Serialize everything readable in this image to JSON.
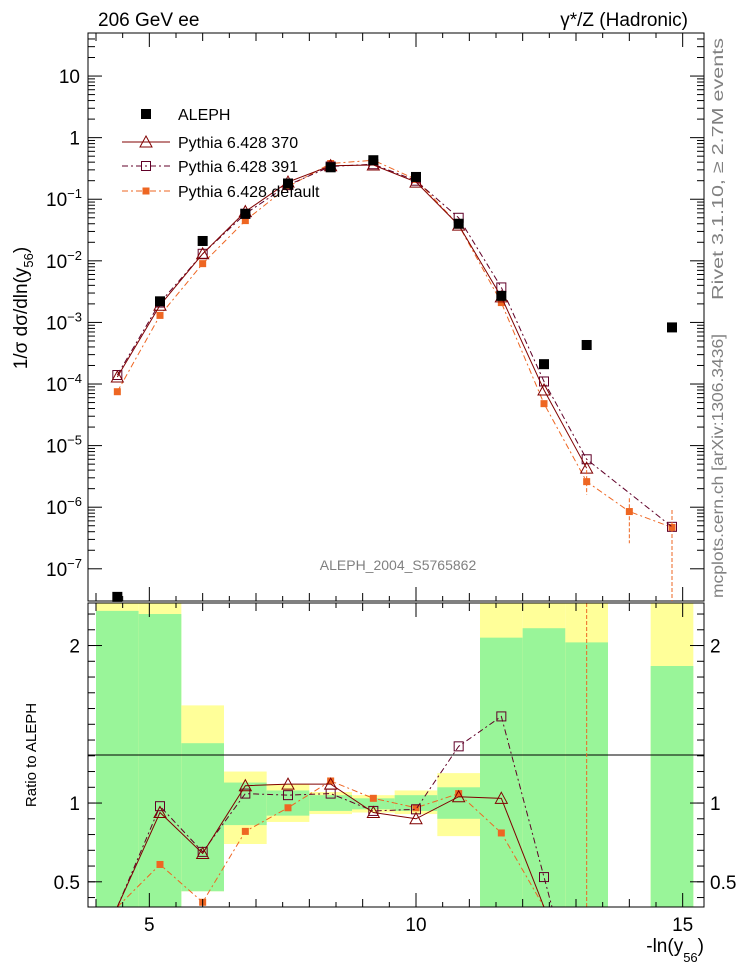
{
  "header": {
    "energy_label": "206 GeV ee",
    "process_label": "γ*/Z (Hadronic)",
    "rivet_label": "Rivet 3.1.10, ≥ 2.7M events",
    "mcplots_label": "mcplots.cern.ch [arXiv:1306.3436]",
    "analysis_label": "ALEPH_2004_S5765862"
  },
  "colors": {
    "data": "#000000",
    "p370": "#800000",
    "p391": "#600028",
    "pdefault": "#ee6622",
    "band_inner": "#99f599",
    "band_outer": "#ffff99"
  },
  "chart_data": [
    {
      "type": "line",
      "panel": "main",
      "title": "",
      "ylabel_parts": {
        "prefix": "1/σ  dσ/dln(y",
        "sub": "56",
        "suffix": ")"
      },
      "yscale": "log",
      "xlim": [
        3.85,
        15.4
      ],
      "ylim": [
        3e-08,
        50
      ],
      "y_ticks": [
        {
          "value": 10,
          "label": "10"
        },
        {
          "value": 1,
          "label": "1"
        },
        {
          "value": 0.1,
          "label": "10",
          "exp": "−1"
        },
        {
          "value": 0.01,
          "label": "10",
          "exp": "−2"
        },
        {
          "value": 0.001,
          "label": "10",
          "exp": "−3"
        },
        {
          "value": 0.0001,
          "label": "10",
          "exp": "−4"
        },
        {
          "value": 1e-05,
          "label": "10",
          "exp": "−5"
        },
        {
          "value": 1e-06,
          "label": "10",
          "exp": "−6"
        },
        {
          "value": 1e-07,
          "label": "10",
          "exp": "−7"
        }
      ],
      "legend_position": "top-left",
      "series": [
        {
          "name": "ALEPH",
          "marker": "filled-square",
          "x": [
            4.4,
            5.2,
            6.0,
            6.8,
            7.6,
            8.4,
            9.2,
            10.0,
            10.8,
            11.6,
            12.4,
            13.2,
            14.8
          ],
          "values": [
            3.5e-08,
            0.0022,
            0.021,
            0.058,
            0.18,
            0.33,
            0.43,
            0.23,
            0.04,
            0.0027,
            0.00021,
            0.00043,
            0.00083
          ]
        },
        {
          "name": "Pythia 6.428 370",
          "marker": "open-triangle",
          "line": "solid",
          "x": [
            4.4,
            5.2,
            6.0,
            6.8,
            7.6,
            8.4,
            9.2,
            10.0,
            10.8,
            11.6,
            12.4,
            13.2
          ],
          "values": [
            0.00013,
            0.0019,
            0.013,
            0.063,
            0.19,
            0.35,
            0.36,
            0.19,
            0.038,
            0.0026,
            8e-05,
            4.3e-06
          ]
        },
        {
          "name": "Pythia 6.428 391",
          "marker": "open-square",
          "line": "dash-dot",
          "x": [
            4.4,
            5.2,
            6.0,
            6.8,
            7.6,
            8.4,
            9.2,
            10.0,
            10.8,
            11.6,
            12.4,
            13.2,
            14.8
          ],
          "values": [
            0.00014,
            0.0021,
            0.013,
            0.058,
            0.17,
            0.34,
            0.37,
            0.2,
            0.05,
            0.0037,
            0.00011,
            6e-06,
            4.8e-07
          ]
        },
        {
          "name": "Pythia 6.428 default",
          "marker": "filled-small-square",
          "line": "dash-dot",
          "x": [
            4.4,
            5.2,
            6.0,
            6.8,
            7.6,
            8.4,
            9.2,
            10.0,
            10.8,
            11.6,
            12.4,
            13.2,
            14.0,
            14.8
          ],
          "values": [
            7.5e-05,
            0.0013,
            0.009,
            0.045,
            0.16,
            0.38,
            0.43,
            0.21,
            0.038,
            0.0021,
            4.8e-05,
            2.6e-06,
            8.5e-07,
            4.7e-07
          ]
        }
      ]
    },
    {
      "type": "line",
      "panel": "ratio",
      "ylabel": "Ratio to ALEPH",
      "xlabel_parts": {
        "prefix": "-ln(y",
        "sub": "56",
        "suffix": ")"
      },
      "xlim": [
        3.85,
        15.4
      ],
      "ylim": [
        0.34,
        2.27
      ],
      "x_ticks": [
        {
          "value": 5,
          "label": "5"
        },
        {
          "value": 10,
          "label": "10"
        },
        {
          "value": 15,
          "label": "15"
        }
      ],
      "y_ticks": [
        {
          "value": 2,
          "label": "2"
        },
        {
          "value": 1,
          "label": "1"
        },
        {
          "value": 0.5,
          "label": "0.5"
        }
      ],
      "bands": [
        {
          "x": [
            4.0,
            4.8
          ],
          "inner": [
            0.34,
            2.22
          ],
          "outer": [
            0.34,
            2.27
          ]
        },
        {
          "x": [
            4.8,
            5.6
          ],
          "inner": [
            0.34,
            2.2
          ],
          "outer": [
            0.34,
            2.27
          ]
        },
        {
          "x": [
            5.6,
            6.4
          ],
          "inner": [
            0.44,
            1.38
          ],
          "outer": [
            0.44,
            1.62
          ]
        },
        {
          "x": [
            6.4,
            7.2
          ],
          "inner": [
            0.86,
            1.13
          ],
          "outer": [
            0.74,
            1.2
          ]
        },
        {
          "x": [
            7.2,
            8.0
          ],
          "inner": [
            0.92,
            1.08
          ],
          "outer": [
            0.88,
            1.12
          ]
        },
        {
          "x": [
            8.0,
            8.8
          ],
          "inner": [
            0.95,
            1.05
          ],
          "outer": [
            0.93,
            1.07
          ]
        },
        {
          "x": [
            8.8,
            9.6
          ],
          "inner": [
            0.96,
            1.03
          ],
          "outer": [
            0.94,
            1.05
          ]
        },
        {
          "x": [
            9.6,
            10.4
          ],
          "inner": [
            0.95,
            1.05
          ],
          "outer": [
            0.93,
            1.08
          ]
        },
        {
          "x": [
            10.4,
            11.2
          ],
          "inner": [
            0.9,
            1.1
          ],
          "outer": [
            0.79,
            1.19
          ]
        },
        {
          "x": [
            11.2,
            12.0
          ],
          "inner": [
            0.34,
            2.05
          ],
          "outer": [
            0.34,
            2.27
          ]
        },
        {
          "x": [
            12.0,
            12.8
          ],
          "inner": [
            0.34,
            2.11
          ],
          "outer": [
            0.34,
            2.27
          ]
        },
        {
          "x": [
            12.8,
            13.6
          ],
          "inner": [
            0.34,
            2.02
          ],
          "outer": [
            0.34,
            2.27
          ]
        },
        {
          "x": [
            14.4,
            15.2
          ],
          "inner": [
            0.34,
            1.87
          ],
          "outer": [
            0.34,
            2.27
          ]
        }
      ],
      "series": [
        {
          "name": "Pythia 6.428 370",
          "marker": "open-triangle",
          "line": "solid",
          "x": [
            4.4,
            5.2,
            6.0,
            6.8,
            7.6,
            8.4,
            9.2,
            10.0,
            10.8,
            11.6,
            12.4
          ],
          "values": [
            0.2,
            0.94,
            0.68,
            1.11,
            1.12,
            1.12,
            0.94,
            0.9,
            1.04,
            1.03,
            0.2
          ]
        },
        {
          "name": "Pythia 6.428 391",
          "marker": "open-square",
          "line": "dash-dot",
          "x": [
            4.4,
            5.2,
            6.0,
            6.8,
            7.6,
            8.4,
            9.2,
            10.0,
            10.8,
            11.6,
            12.4,
            12.55
          ],
          "values": [
            0.2,
            0.98,
            0.69,
            1.06,
            1.05,
            1.06,
            0.95,
            0.96,
            1.36,
            1.55,
            0.53,
            0.2
          ]
        },
        {
          "name": "Pythia 6.428 default",
          "marker": "filled-small-square",
          "line": "dash-dot",
          "x": [
            4.4,
            5.2,
            6.0,
            6.8,
            7.6,
            8.4,
            9.2,
            10.0,
            10.8,
            11.6,
            12.4
          ],
          "values": [
            0.2,
            0.61,
            0.37,
            0.82,
            0.97,
            1.14,
            1.03,
            0.97,
            1.06,
            0.81,
            0.2
          ]
        }
      ]
    }
  ]
}
